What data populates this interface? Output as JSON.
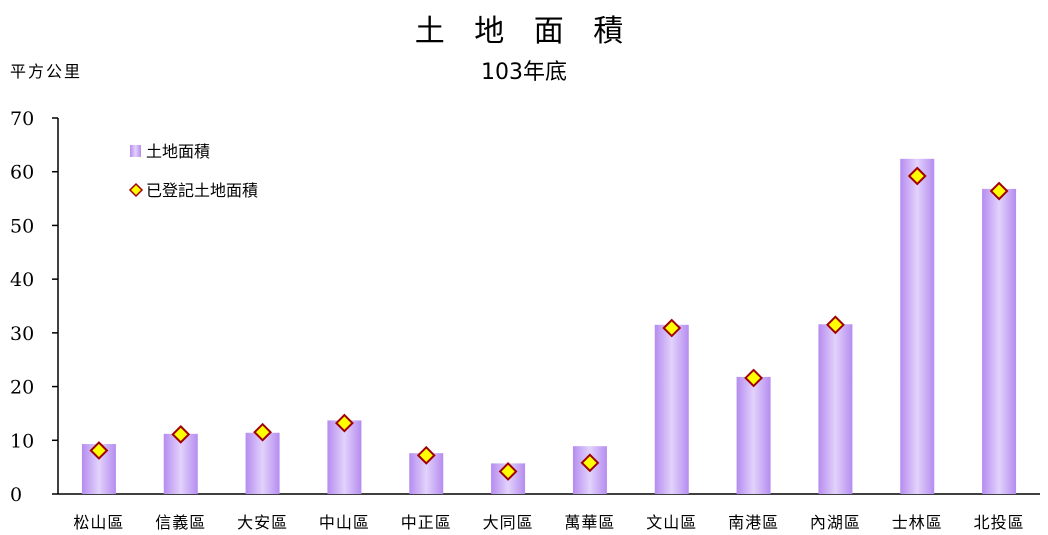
{
  "chart_data": {
    "type": "bar",
    "title": "土 地 面 積",
    "subtitle": "103年底",
    "unit_label": "平方公里",
    "ylim": [
      0,
      70
    ],
    "yticks": [
      0,
      10,
      20,
      30,
      40,
      50,
      60,
      70
    ],
    "categories": [
      "松山區",
      "信義區",
      "大安區",
      "中山區",
      "中正區",
      "大同區",
      "萬華區",
      "文山區",
      "南港區",
      "內湖區",
      "士林區",
      "北投區"
    ],
    "series": [
      {
        "name": "土地面積",
        "type": "bar",
        "color": "#c8a8f4",
        "values": [
          9.3,
          11.2,
          11.4,
          13.7,
          7.6,
          5.7,
          8.9,
          31.5,
          21.8,
          31.6,
          62.4,
          56.8
        ]
      },
      {
        "name": "已登記土地面積",
        "type": "marker",
        "color": "#ffff00",
        "stroke": "#a00000",
        "values": [
          8.1,
          11.1,
          11.5,
          13.2,
          7.2,
          4.2,
          5.8,
          30.9,
          21.6,
          31.5,
          59.2,
          56.4
        ]
      }
    ],
    "legend_position": "top-left",
    "grid": false
  }
}
